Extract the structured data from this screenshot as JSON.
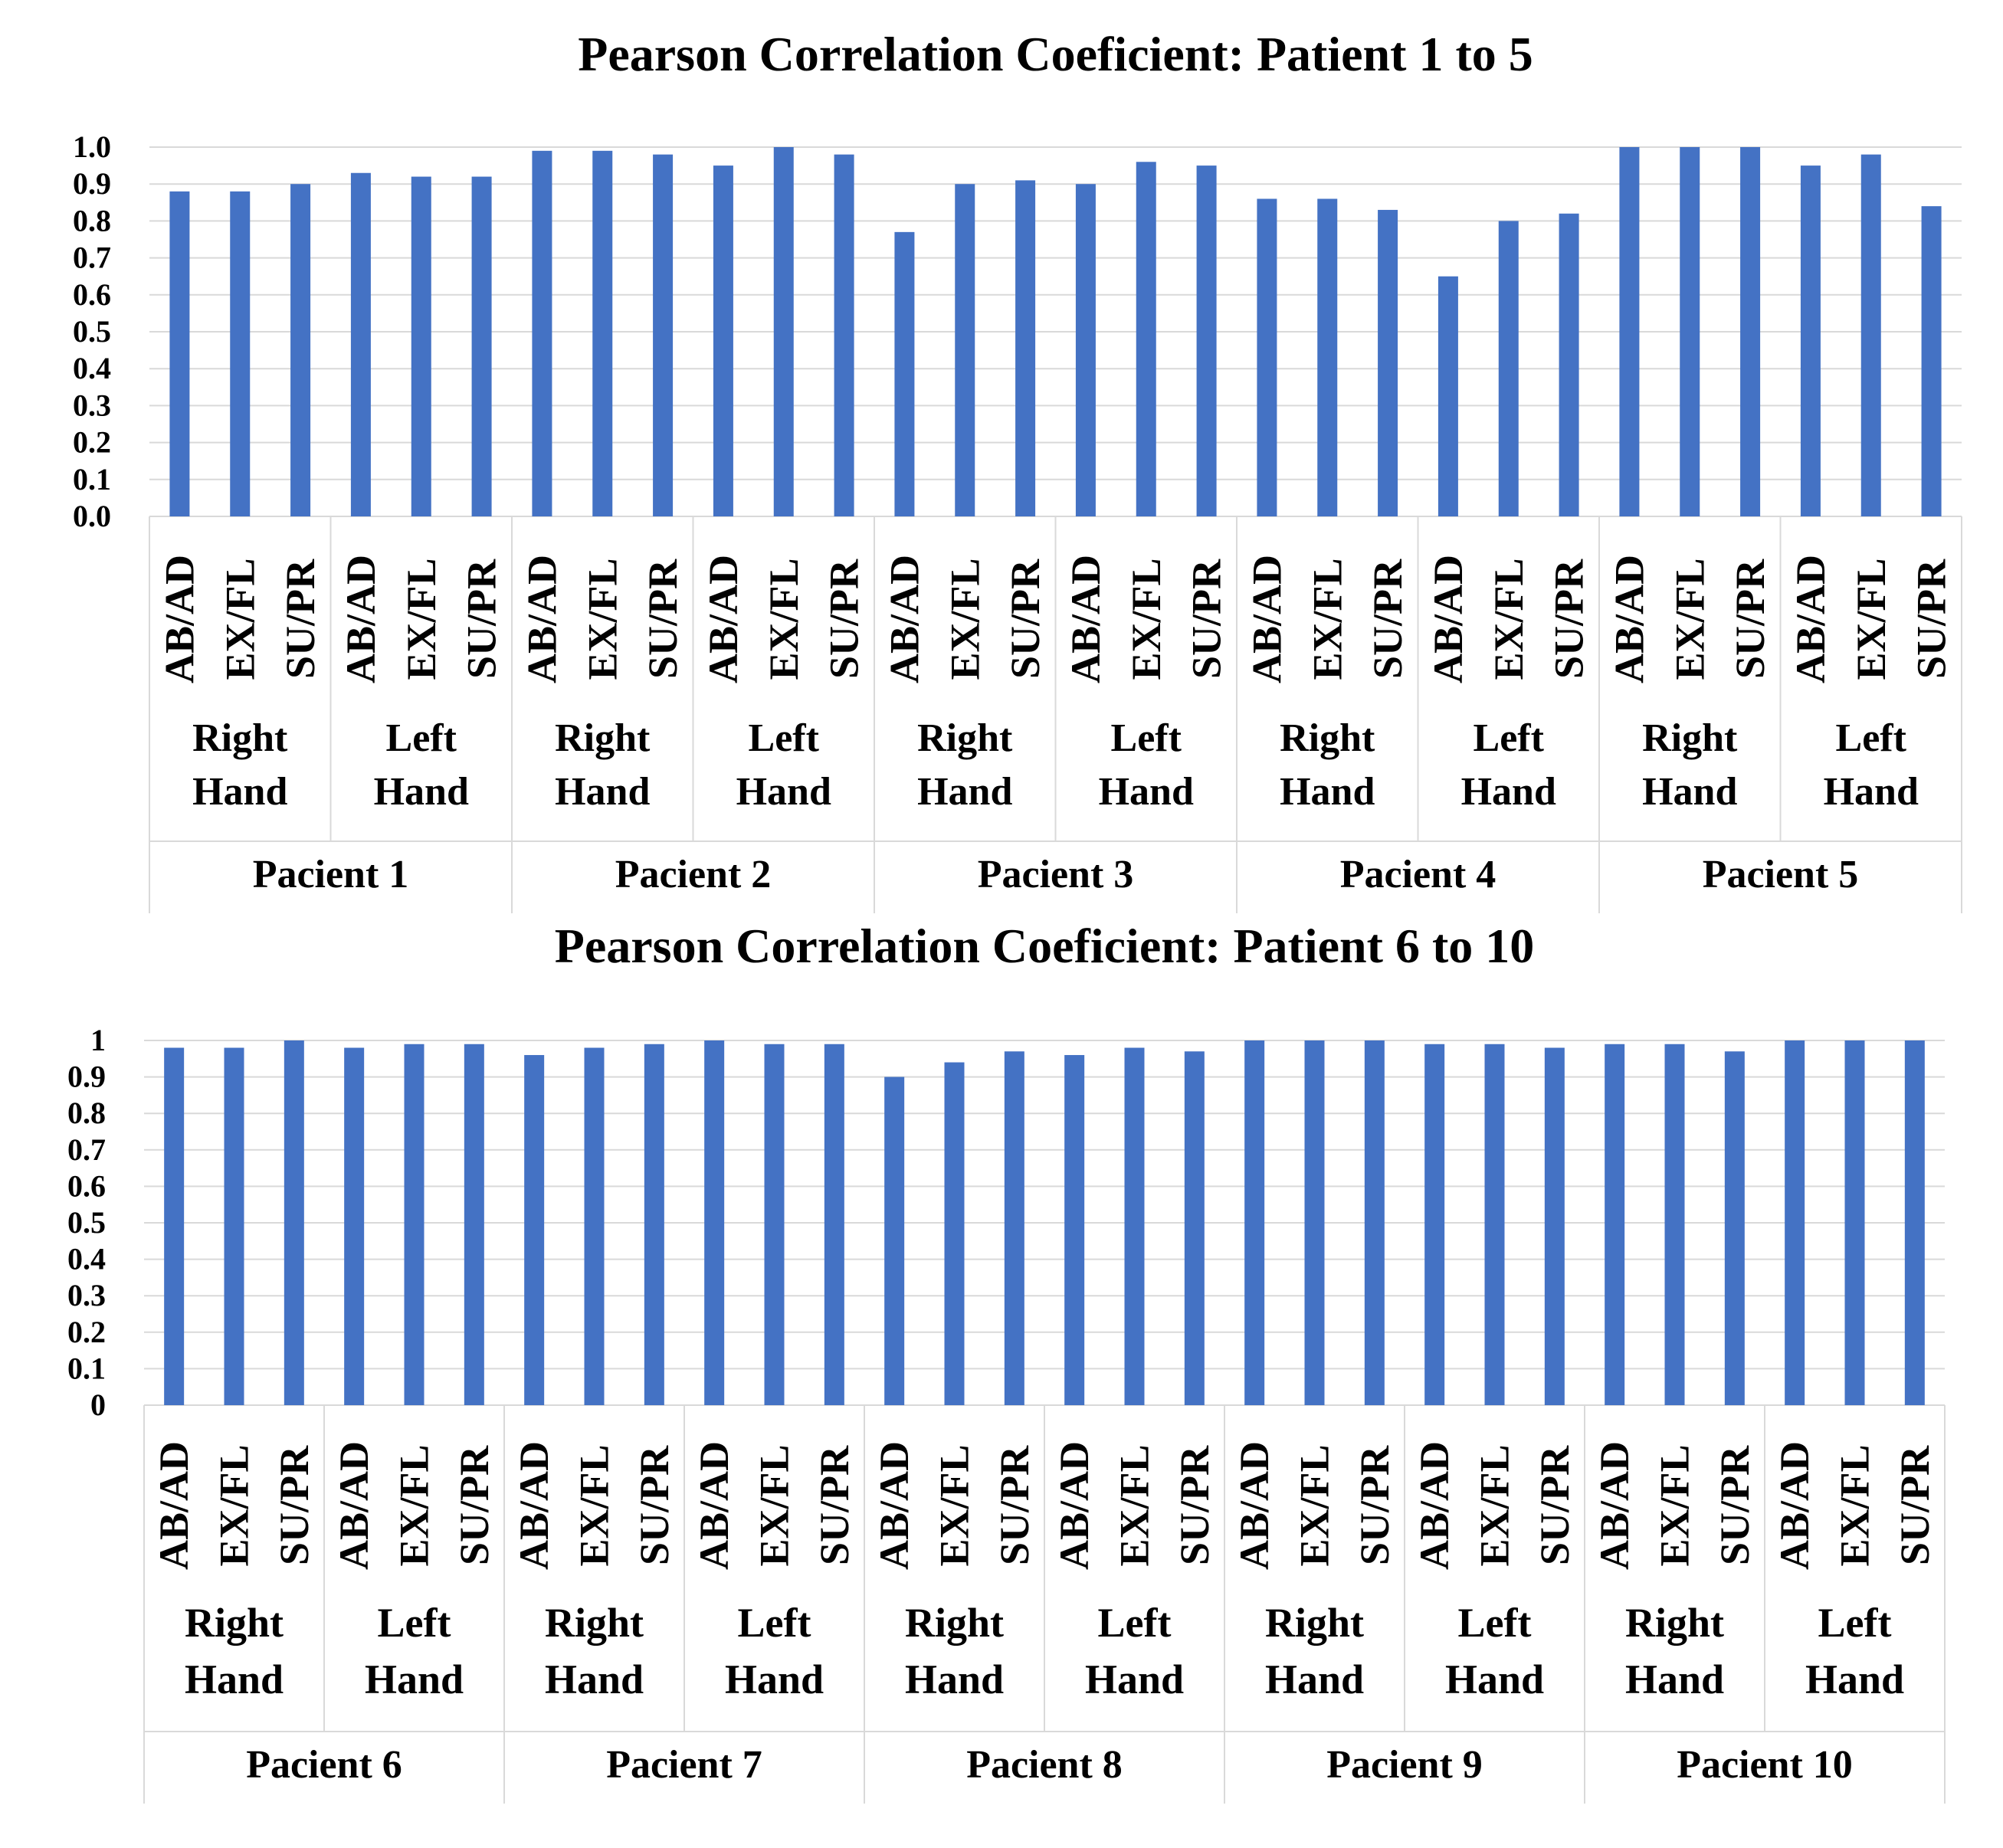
{
  "colors": {
    "bar": "#4472C4",
    "grid": "#D9D9D9",
    "axis": "#D9D9D9",
    "text": "#000000"
  },
  "chart_data": [
    {
      "type": "bar",
      "title": "Pearson Correlation Coeficient: Patient 1 to 5",
      "ylim": [
        0,
        1
      ],
      "ytick_labels": [
        "0.0",
        "0.1",
        "0.2",
        "0.3",
        "0.4",
        "0.5",
        "0.6",
        "0.7",
        "0.8",
        "0.9",
        "1.0"
      ],
      "grid": true,
      "level1_labels": [
        "AB/AD",
        "EX/FL",
        "SU/PR"
      ],
      "level2_labels": [
        "Right Hand",
        "Left Hand"
      ],
      "groups": [
        {
          "label": "Pacient 1",
          "values": [
            0.88,
            0.88,
            0.9,
            0.93,
            0.92,
            0.92
          ]
        },
        {
          "label": "Pacient 2",
          "values": [
            0.99,
            0.99,
            0.98,
            0.95,
            1.0,
            0.98
          ]
        },
        {
          "label": "Pacient 3",
          "values": [
            0.77,
            0.9,
            0.91,
            0.9,
            0.96,
            0.95
          ]
        },
        {
          "label": "Pacient 4",
          "values": [
            0.86,
            0.86,
            0.83,
            0.65,
            0.8,
            0.82
          ]
        },
        {
          "label": "Pacient 5",
          "values": [
            1.0,
            1.0,
            1.0,
            0.95,
            0.98,
            0.84
          ]
        }
      ]
    },
    {
      "type": "bar",
      "title": "Pearson Correlation Coeficient: Patient 6 to 10",
      "ylim": [
        0,
        1
      ],
      "ytick_labels": [
        "0",
        "0.1",
        "0.2",
        "0.3",
        "0.4",
        "0.5",
        "0.6",
        "0.7",
        "0.8",
        "0.9",
        "1"
      ],
      "grid": true,
      "level1_labels": [
        "AB/AD",
        "EX/FL",
        "SU/PR"
      ],
      "level2_labels": [
        "Right Hand",
        "Left Hand"
      ],
      "groups": [
        {
          "label": "Pacient 6",
          "values": [
            0.98,
            0.98,
            1.0,
            0.98,
            0.99,
            0.99
          ]
        },
        {
          "label": "Pacient 7",
          "values": [
            0.96,
            0.98,
            0.99,
            1.0,
            0.99,
            0.99
          ]
        },
        {
          "label": "Pacient 8",
          "values": [
            0.9,
            0.94,
            0.97,
            0.96,
            0.98,
            0.97
          ]
        },
        {
          "label": "Pacient 9",
          "values": [
            1.0,
            1.0,
            1.0,
            0.99,
            0.99,
            0.98
          ]
        },
        {
          "label": "Pacient 10",
          "values": [
            0.99,
            0.99,
            0.97,
            1.0,
            1.0,
            1.0
          ]
        }
      ]
    }
  ]
}
